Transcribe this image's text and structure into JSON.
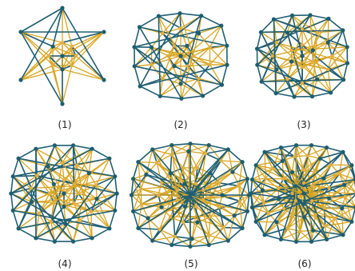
{
  "figure": {
    "panels": [
      {
        "label": "(1)",
        "rings": [
          {
            "n": 4,
            "r": 0.28,
            "rot": 45
          },
          {
            "n": 4,
            "r": 0.28,
            "rot": 0
          }
        ],
        "outer": {
          "n": 6,
          "r": 1.0,
          "rot": 90
        },
        "k": 4
      },
      {
        "label": "(2)",
        "rings": [
          {
            "n": 6,
            "r": 0.25,
            "rot": 0
          },
          {
            "n": 10,
            "r": 0.6,
            "rot": 18
          }
        ],
        "outer": {
          "n": 14,
          "r": 1.0,
          "rot": 12
        },
        "k": 4
      },
      {
        "label": "(3)",
        "rings": [
          {
            "n": 6,
            "r": 0.25,
            "rot": 30
          },
          {
            "n": 12,
            "r": 0.6,
            "rot": 0
          }
        ],
        "outer": {
          "n": 16,
          "r": 1.0,
          "rot": 10
        },
        "k": 5
      },
      {
        "label": "(4)",
        "rings": [
          {
            "n": 8,
            "r": 0.25,
            "rot": 0
          },
          {
            "n": 14,
            "r": 0.58,
            "rot": 10
          }
        ],
        "outer": {
          "n": 18,
          "r": 1.0,
          "rot": 0
        },
        "k": 5
      },
      {
        "label": "(5)",
        "rings": [
          {
            "n": 8,
            "r": 0.22,
            "rot": 22
          },
          {
            "n": 14,
            "r": 0.5,
            "rot": 0
          },
          {
            "n": 18,
            "r": 0.78,
            "rot": 8
          }
        ],
        "outer": {
          "n": 20,
          "r": 1.0,
          "rot": 0
        },
        "k": 5
      },
      {
        "label": "(6)",
        "rings": [
          {
            "n": 8,
            "r": 0.2,
            "rot": 0
          },
          {
            "n": 14,
            "r": 0.45,
            "rot": 12
          },
          {
            "n": 20,
            "r": 0.72,
            "rot": 5
          }
        ],
        "outer": {
          "n": 22,
          "r": 1.0,
          "rot": 0
        },
        "k": 6
      }
    ]
  },
  "colors": {
    "edge_gold": "#D9A520",
    "edge_teal": "#1F5F73",
    "node_gold": "#E0B040",
    "node_teal": "#1D5E72",
    "caption": "#222222"
  }
}
